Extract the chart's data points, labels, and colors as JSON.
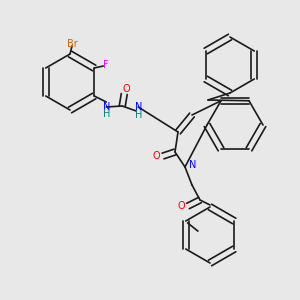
{
  "background_color": "#e8e8e8",
  "bond_color": "#1a1a1a",
  "atom_colors": {
    "N": "#0000ff",
    "O": "#ff0000",
    "F": "#ff00ff",
    "Br": "#cc6600",
    "H": "#008080",
    "C": "#1a1a1a"
  },
  "title": "",
  "figsize": [
    3.0,
    3.0
  ],
  "dpi": 100
}
